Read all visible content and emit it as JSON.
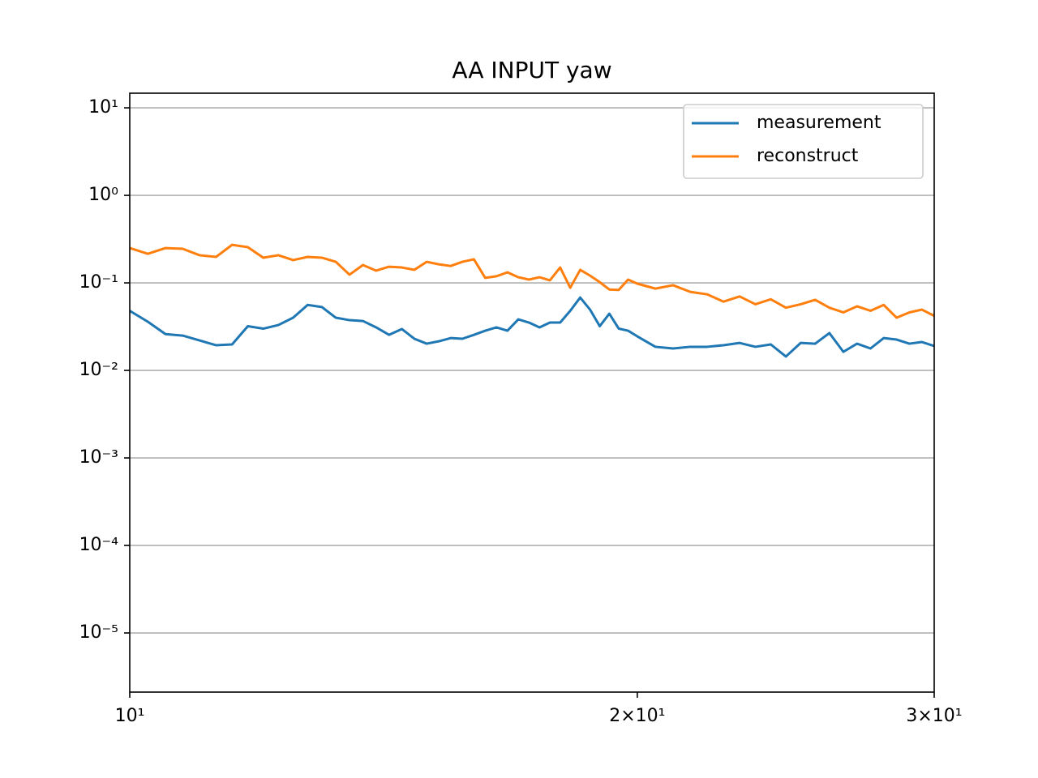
{
  "chart_data": {
    "type": "line",
    "title": "AA INPUT yaw",
    "x": [
      10,
      10.25,
      10.5,
      10.75,
      11,
      11.25,
      11.5,
      11.75,
      12,
      12.25,
      12.5,
      12.75,
      13,
      13.25,
      13.5,
      13.75,
      14,
      14.25,
      14.5,
      14.75,
      15,
      15.25,
      15.5,
      15.75,
      16,
      16.25,
      16.5,
      16.75,
      17,
      17.25,
      17.5,
      17.75,
      18,
      18.25,
      18.5,
      18.75,
      19,
      19.25,
      19.5,
      19.75,
      20,
      20.5,
      21,
      21.5,
      22,
      22.5,
      23,
      23.5,
      24,
      24.5,
      25,
      25.5,
      26,
      26.5,
      27,
      27.5,
      28,
      28.5,
      29,
      29.5,
      30
    ],
    "series": [
      {
        "name": "measurement",
        "color": "#1f77b4",
        "values": [
          0.048,
          0.036,
          0.026,
          0.025,
          0.022,
          0.0194,
          0.0198,
          0.032,
          0.03,
          0.033,
          0.04,
          0.056,
          0.053,
          0.04,
          0.0375,
          0.0367,
          0.031,
          0.0255,
          0.0297,
          0.023,
          0.0202,
          0.0215,
          0.0234,
          0.023,
          0.0255,
          0.0284,
          0.031,
          0.0284,
          0.0383,
          0.0352,
          0.031,
          0.0352,
          0.0352,
          0.048,
          0.068,
          0.0495,
          0.032,
          0.0445,
          0.03,
          0.0284,
          0.0245,
          0.0186,
          0.0178,
          0.0186,
          0.0186,
          0.0194,
          0.0206,
          0.0186,
          0.0198,
          0.0144,
          0.0206,
          0.0202,
          0.0267,
          0.0163,
          0.0202,
          0.0178,
          0.0234,
          0.0225,
          0.0202,
          0.0211,
          0.019
        ]
      },
      {
        "name": "reconstruct",
        "color": "#ff7f0e",
        "values": [
          0.25,
          0.215,
          0.25,
          0.245,
          0.207,
          0.198,
          0.272,
          0.256,
          0.194,
          0.207,
          0.182,
          0.198,
          0.194,
          0.174,
          0.124,
          0.16,
          0.138,
          0.153,
          0.15,
          0.141,
          0.174,
          0.163,
          0.156,
          0.174,
          0.186,
          0.114,
          0.119,
          0.132,
          0.116,
          0.109,
          0.116,
          0.107,
          0.15,
          0.088,
          0.141,
          0.121,
          0.102,
          0.084,
          0.083,
          0.109,
          0.098,
          0.086,
          0.094,
          0.079,
          0.074,
          0.061,
          0.07,
          0.057,
          0.065,
          0.052,
          0.057,
          0.064,
          0.052,
          0.046,
          0.054,
          0.048,
          0.056,
          0.04,
          0.046,
          0.0495,
          0.042
        ]
      }
    ],
    "xscale": "log",
    "yscale": "log",
    "xlim": [
      10,
      30
    ],
    "xticks": [
      {
        "value": 10,
        "label": "10¹"
      },
      {
        "value": 20,
        "label": "2×10¹"
      },
      {
        "value": 30,
        "label": "3×10¹"
      }
    ],
    "ylim": [
      2.11e-06,
      14.7
    ],
    "yticks": [
      {
        "value": 10,
        "label": "10¹"
      },
      {
        "value": 1,
        "label": "10⁰"
      },
      {
        "value": 0.1,
        "label": "10⁻¹"
      },
      {
        "value": 0.01,
        "label": "10⁻²"
      },
      {
        "value": 0.001,
        "label": "10⁻³"
      },
      {
        "value": 0.0001,
        "label": "10⁻⁴"
      },
      {
        "value": 1e-05,
        "label": "10⁻⁵"
      }
    ],
    "grid": true,
    "legend": "upper right"
  }
}
